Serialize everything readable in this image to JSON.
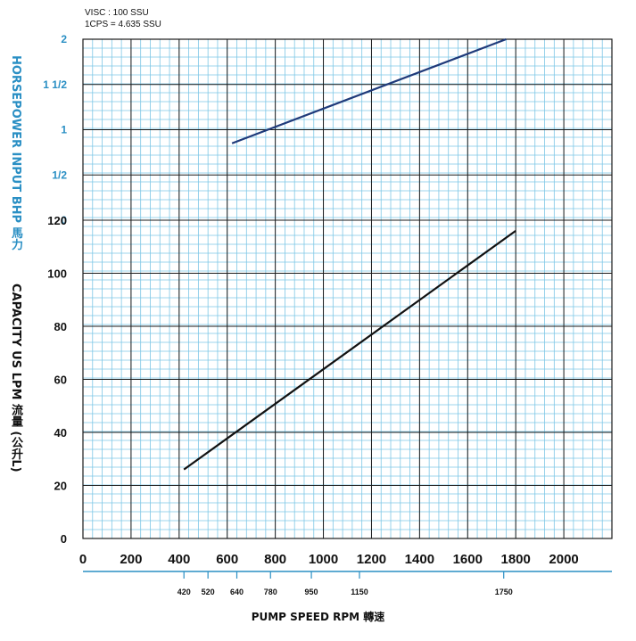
{
  "notes": [
    "VISC : 100 SSU",
    "1CPS = 4.635 SSU"
  ],
  "chart_data": [
    {
      "type": "line",
      "ylabel": "HORSEPOWER INPUT BHP 馬力",
      "ytick_labels": [
        "0",
        "1/2",
        "1",
        "1 1/2",
        "2"
      ],
      "ylim": [
        0,
        2
      ],
      "xlim": [
        0,
        2200
      ],
      "series": [
        {
          "x": [
            620,
            1760
          ],
          "y": [
            0.85,
            2.0
          ]
        }
      ]
    },
    {
      "type": "line",
      "ylabel": "CAPACITY  US LPM  流量 (公升L)",
      "xlabel": "PUMP  SPEED  RPM   轉速",
      "ytick_labels": [
        "0",
        "20",
        "40",
        "60",
        "80",
        "100",
        "120"
      ],
      "ylim": [
        0,
        120
      ],
      "xlim": [
        0,
        2200
      ],
      "xtick_labels": [
        "0",
        "200",
        "400",
        "600",
        "800",
        "1000",
        "1200",
        "1400",
        "1600",
        "1800",
        "2000"
      ],
      "xticks_secondary": [
        "420",
        "520",
        "640",
        "780",
        "950",
        "1150",
        "1750"
      ],
      "series": [
        {
          "x": [
            420,
            1800
          ],
          "y": [
            26,
            116
          ]
        }
      ]
    }
  ],
  "colors": {
    "grid_minor": "#7ec7e6",
    "grid_major": "#1a1a1a",
    "hp_line": "#1f3a7a",
    "capacity_line": "#111111",
    "hp_text": "#2a8fc4",
    "axis_secondary": "#2a8fc4"
  }
}
